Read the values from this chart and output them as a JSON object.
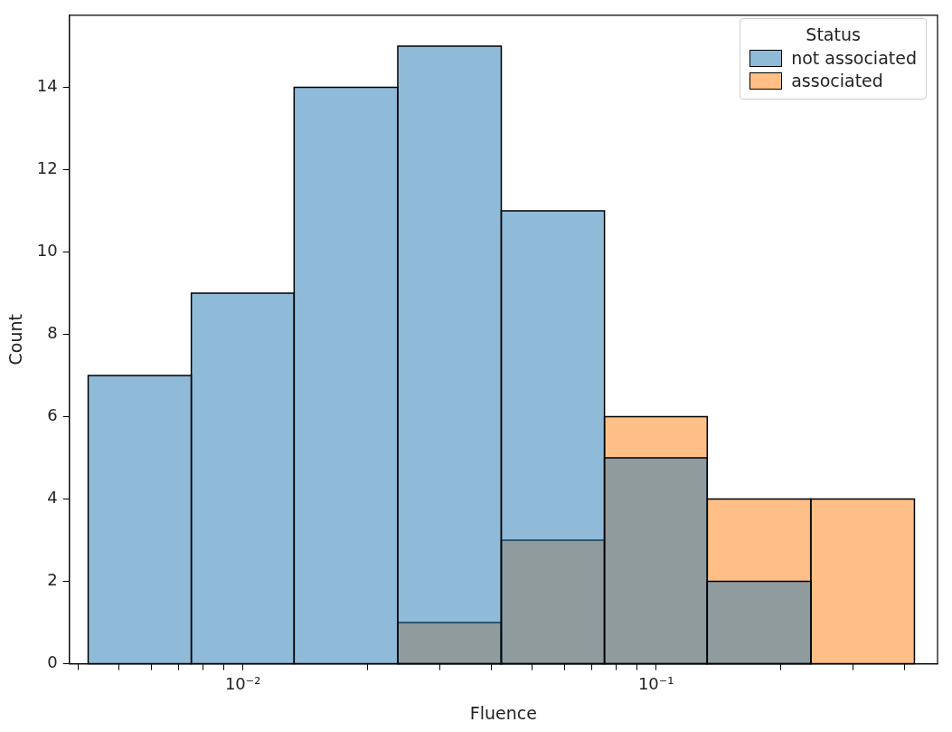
{
  "chart_data": {
    "type": "histogram",
    "xlabel": "Fluence",
    "ylabel": "Count",
    "legend_title": "Status",
    "log": "x",
    "grid": false,
    "legend": "top right",
    "bins": [
      0.00422,
      0.0075,
      0.0133,
      0.0237,
      0.0422,
      0.075,
      0.133,
      0.237,
      0.422
    ],
    "series": [
      {
        "name": "not associated",
        "color": "#1f77b4",
        "values": [
          7,
          9,
          14,
          15,
          11,
          5,
          2,
          0
        ]
      },
      {
        "name": "associated",
        "color": "#ff7f0e",
        "values": [
          0,
          0,
          0,
          1,
          3,
          6,
          4,
          4
        ]
      }
    ],
    "xlim": [
      0.0038,
      0.48
    ],
    "xticks": [
      {
        "value": 0.004,
        "label": null
      },
      {
        "value": 0.005,
        "label": null
      },
      {
        "value": 0.006,
        "label": null
      },
      {
        "value": 0.007,
        "label": null
      },
      {
        "value": 0.008,
        "label": null
      },
      {
        "value": 0.009,
        "label": null
      },
      {
        "value": 0.01,
        "label": "10⁻²"
      },
      {
        "value": 0.02,
        "label": null
      },
      {
        "value": 0.03,
        "label": null
      },
      {
        "value": 0.04,
        "label": null
      },
      {
        "value": 0.05,
        "label": null
      },
      {
        "value": 0.06,
        "label": null
      },
      {
        "value": 0.07,
        "label": null
      },
      {
        "value": 0.08,
        "label": null
      },
      {
        "value": 0.09,
        "label": null
      },
      {
        "value": 0.1,
        "label": "10⁻¹"
      },
      {
        "value": 0.2,
        "label": null
      },
      {
        "value": 0.3,
        "label": null
      },
      {
        "value": 0.4,
        "label": null
      }
    ],
    "ylim": [
      0,
      15.75
    ],
    "yticks": [
      0,
      2,
      4,
      6,
      8,
      10,
      12,
      14
    ]
  }
}
